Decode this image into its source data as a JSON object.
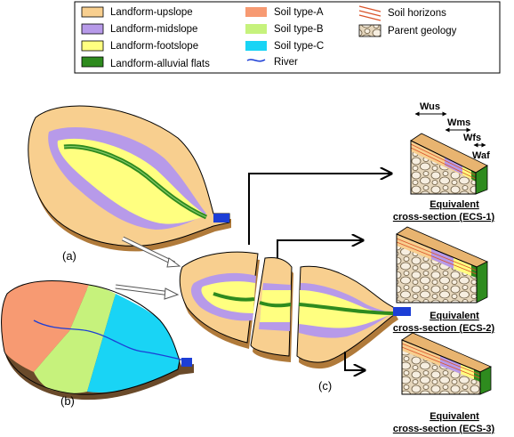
{
  "legend": {
    "items": [
      {
        "label": "Landform-upslope",
        "color": "#f8cf8f"
      },
      {
        "label": "Landform-midslope",
        "color": "#b79ae9"
      },
      {
        "label": "Landform-footslope",
        "color": "#ffff80"
      },
      {
        "label": "Landform-alluvial flats",
        "color": "#2e8b1e"
      },
      {
        "label": "Soil type-A",
        "color": "#f79a72"
      },
      {
        "label": "Soil type-B",
        "color": "#c6f27c"
      },
      {
        "label": "Soil type-C",
        "color": "#19d4f5"
      },
      {
        "label": "River",
        "color": "#1c3ed6"
      },
      {
        "label": "Soil horizons",
        "color": "#d9542a"
      },
      {
        "label": "Parent geology",
        "color": "#c89a5a"
      }
    ]
  },
  "panels": {
    "a": "(a)",
    "b": "(b)",
    "c": "(c)"
  },
  "widths": {
    "us": "Wus",
    "ms": "Wms",
    "fs": "Wfs",
    "af": "Waf"
  },
  "sections": [
    {
      "line1": "Equivalent",
      "line2": "cross-section (ECS-1)"
    },
    {
      "line1": "Equivalent",
      "line2": "cross-section (ECS-2)"
    },
    {
      "line1": "Equivalent",
      "line2": "cross-section (ECS-3)"
    }
  ]
}
